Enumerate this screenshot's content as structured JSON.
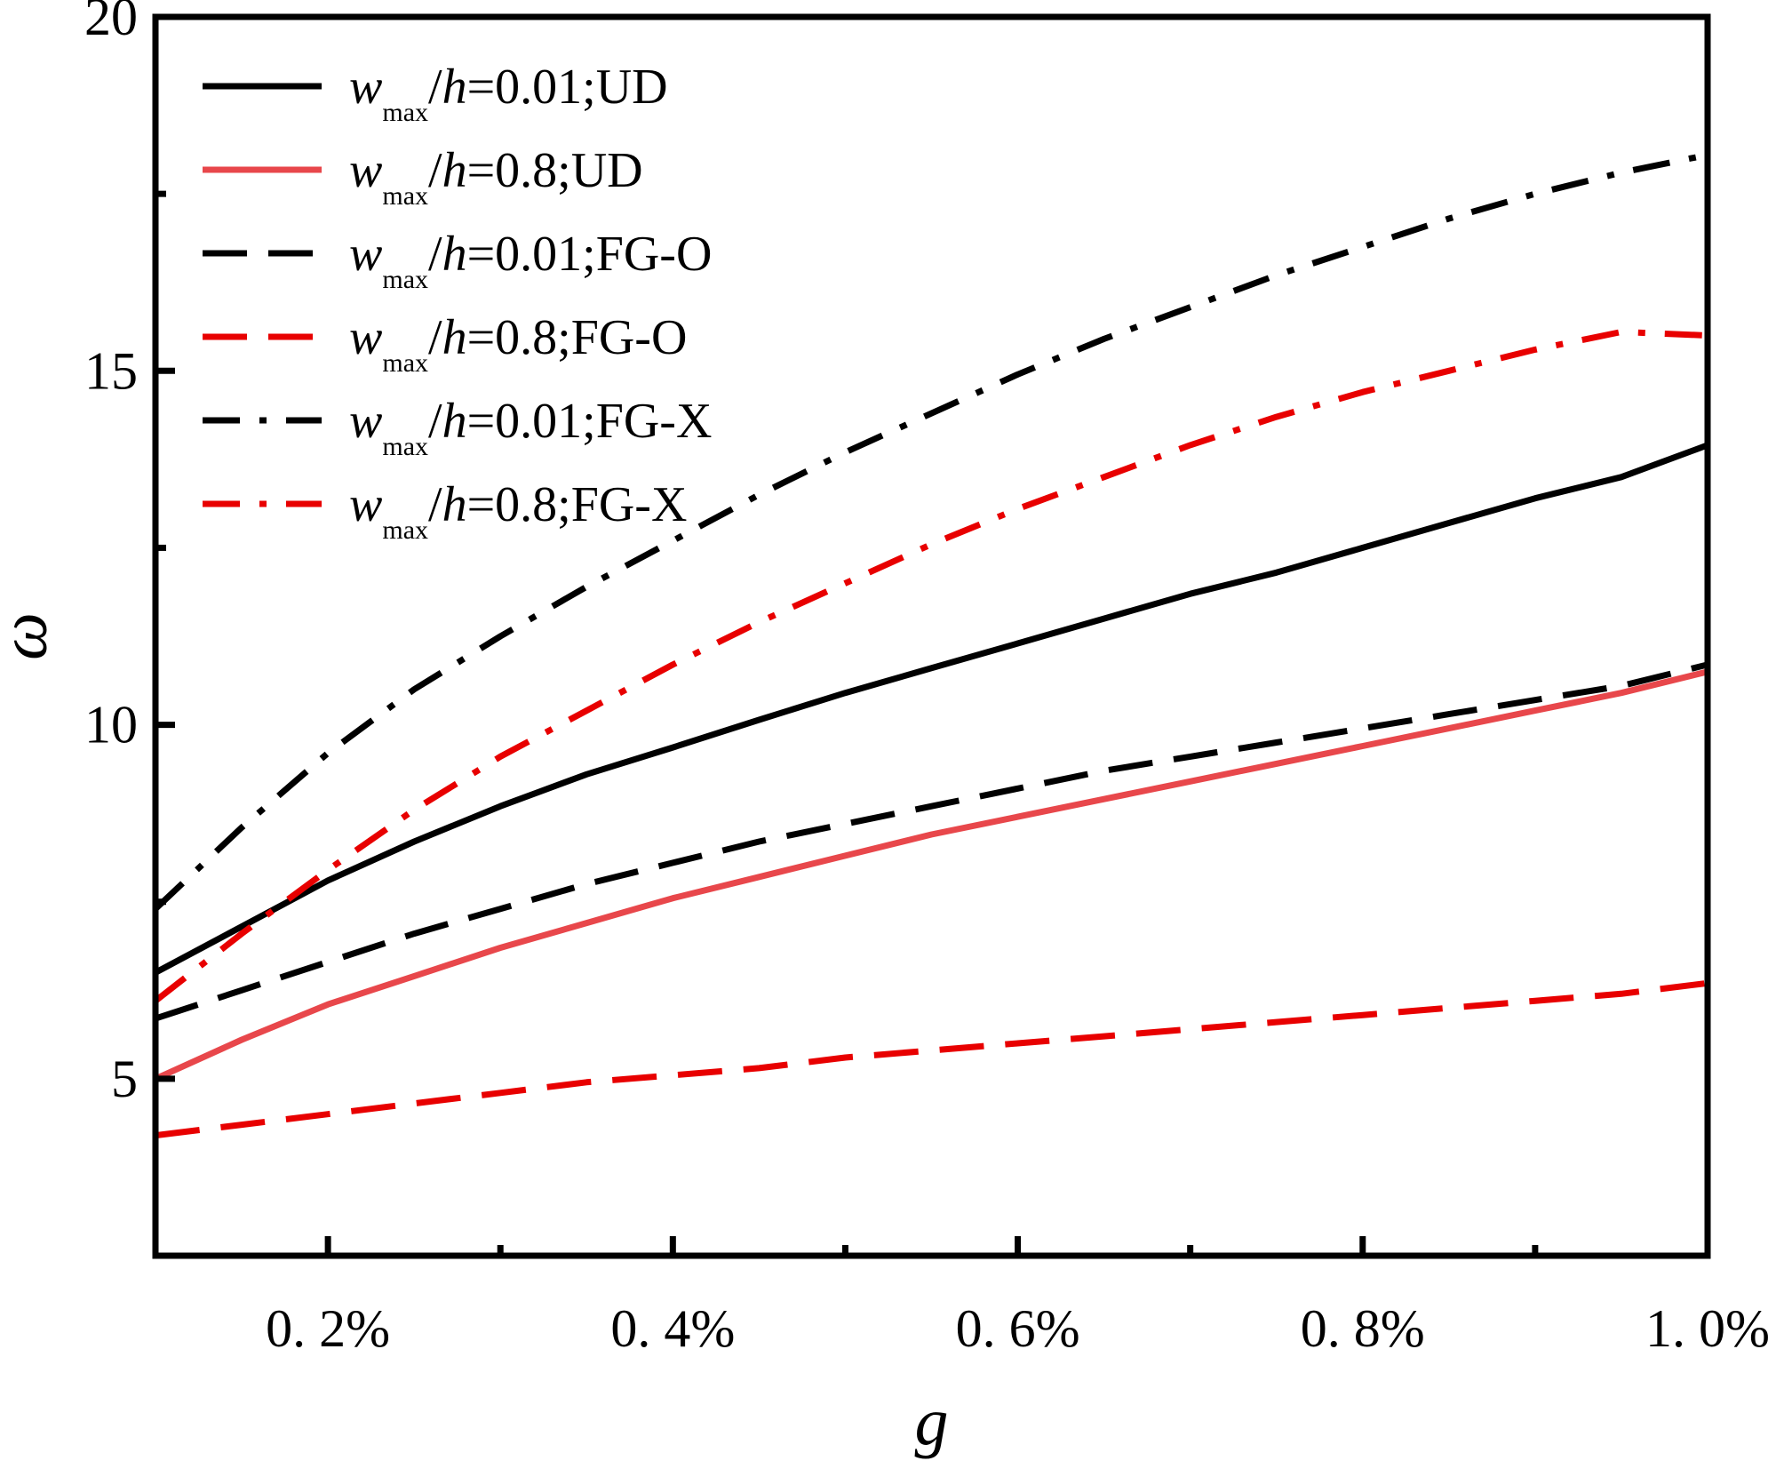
{
  "chart_data": {
    "type": "line",
    "xlabel": "g",
    "ylabel": "ω",
    "xlim": [
      0.1,
      1.0
    ],
    "ylim": [
      2.5,
      20
    ],
    "x_ticks": [
      0.2,
      0.4,
      0.6,
      0.8,
      1.0
    ],
    "x_tick_labels": [
      "0. 2%",
      "0. 4%",
      "0. 6%",
      "0. 8%",
      "1. 0%"
    ],
    "y_ticks": [
      5,
      10,
      15,
      20
    ],
    "y_tick_labels": [
      "5",
      "10",
      "15",
      "20"
    ],
    "grid": false,
    "legend_position": "top-left",
    "x": [
      0.1,
      0.15,
      0.2,
      0.25,
      0.3,
      0.35,
      0.4,
      0.45,
      0.5,
      0.55,
      0.6,
      0.65,
      0.7,
      0.75,
      0.8,
      0.85,
      0.9,
      0.95,
      1.0
    ],
    "series": [
      {
        "legend_var": "w",
        "legend_sub": "max",
        "legend_rest": "/",
        "legend_h": "h",
        "legend_tail": "=0.01;UD",
        "color": "#000000",
        "dash": "solid",
        "values": [
          6.5,
          7.15,
          7.8,
          8.35,
          8.85,
          9.3,
          9.68,
          10.07,
          10.45,
          10.8,
          11.15,
          11.5,
          11.85,
          12.15,
          12.5,
          12.85,
          13.2,
          13.5,
          13.95
        ]
      },
      {
        "legend_var": "w",
        "legend_sub": "max",
        "legend_rest": "/",
        "legend_h": "h",
        "legend_tail": "=0.8;UD",
        "color": "#e8474b",
        "dash": "solid",
        "values": [
          5.0,
          5.55,
          6.05,
          6.45,
          6.85,
          7.2,
          7.55,
          7.85,
          8.15,
          8.45,
          8.7,
          8.95,
          9.2,
          9.45,
          9.7,
          9.95,
          10.2,
          10.45,
          10.75
        ]
      },
      {
        "legend_var": "w",
        "legend_sub": "max",
        "legend_rest": "/",
        "legend_h": "h",
        "legend_tail": "=0.01;FG-O",
        "color": "#000000",
        "dash": "longdash",
        "values": [
          5.85,
          6.25,
          6.65,
          7.05,
          7.4,
          7.75,
          8.05,
          8.35,
          8.6,
          8.85,
          9.1,
          9.35,
          9.55,
          9.75,
          9.95,
          10.15,
          10.35,
          10.55,
          10.85
        ]
      },
      {
        "legend_var": "w",
        "legend_sub": "max",
        "legend_rest": "/",
        "legend_h": "h",
        "legend_tail": "=0.8;FG-O",
        "color": "#e80000",
        "dash": "longdash",
        "values": [
          4.2,
          4.35,
          4.5,
          4.65,
          4.8,
          4.95,
          5.05,
          5.15,
          5.3,
          5.4,
          5.5,
          5.6,
          5.7,
          5.8,
          5.9,
          6.0,
          6.1,
          6.2,
          6.35
        ]
      },
      {
        "legend_var": "w",
        "legend_sub": "max",
        "legend_rest": "/",
        "legend_h": "h",
        "legend_tail": "=0.01;FG-X",
        "color": "#000000",
        "dash": "dashdot",
        "values": [
          7.4,
          8.55,
          9.6,
          10.5,
          11.25,
          11.95,
          12.6,
          13.25,
          13.85,
          14.4,
          14.95,
          15.45,
          15.9,
          16.35,
          16.75,
          17.15,
          17.5,
          17.8,
          18.05
        ]
      },
      {
        "legend_var": "w",
        "legend_sub": "max",
        "legend_rest": "/",
        "legend_h": "h",
        "legend_tail": "=0.8;FG-X",
        "color": "#e80000",
        "dash": "dashdot",
        "values": [
          6.1,
          7.05,
          7.95,
          8.8,
          9.55,
          10.2,
          10.85,
          11.45,
          12.0,
          12.55,
          13.05,
          13.5,
          13.95,
          14.35,
          14.7,
          15.0,
          15.3,
          15.55,
          15.5
        ]
      }
    ]
  }
}
